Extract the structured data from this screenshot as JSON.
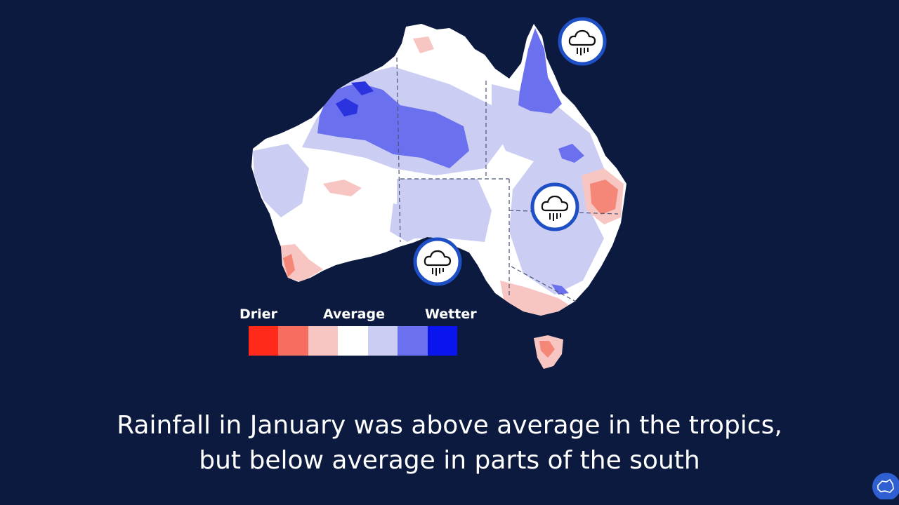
{
  "legend": {
    "drier": "Drier",
    "average": "Average",
    "wetter": "Wetter",
    "colors": [
      "#ff2a1a",
      "#f76d5f",
      "#f8c6c2",
      "#ffffff",
      "#cbcdf3",
      "#6b71ee",
      "#0a14ee"
    ]
  },
  "caption": {
    "line1": "Rainfall in January was above average in the tropics,",
    "line2": "but below average in parts of the south"
  },
  "icons": {
    "rain": "rain-cloud-icon",
    "logo": "australia-map-logo-icon"
  },
  "colors": {
    "background": "#0c1a3f",
    "icon_ring": "#1e4fc4"
  }
}
